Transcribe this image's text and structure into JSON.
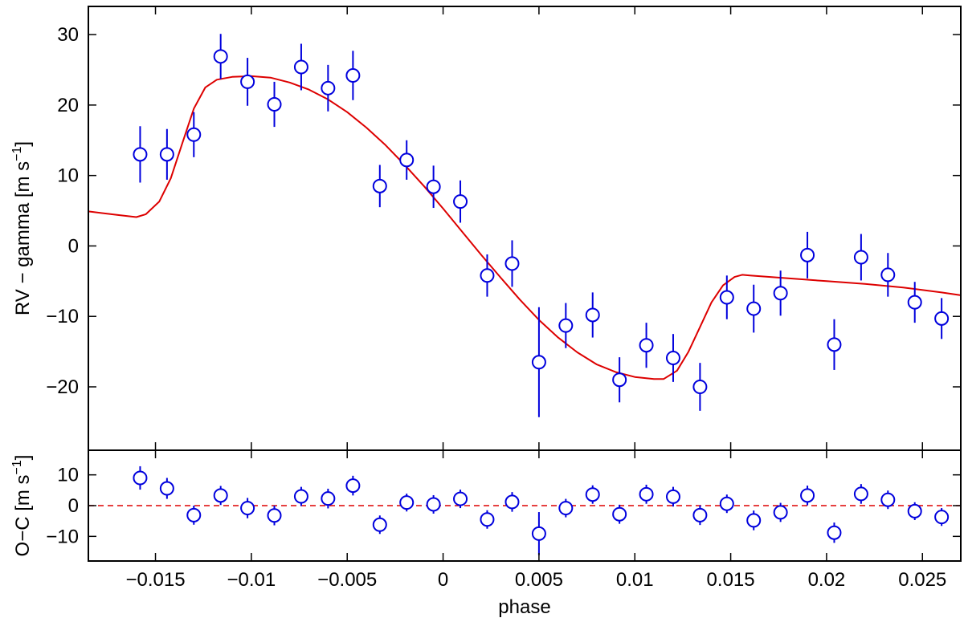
{
  "chart_data": [
    {
      "type": "scatter",
      "panel": "main",
      "title": "",
      "xlabel": "",
      "ylabel_parts": [
        "RV − gamma [m s",
        "−1",
        "]"
      ],
      "xlim": [
        -0.0185,
        0.027
      ],
      "ylim": [
        -29,
        34
      ],
      "yticks": [
        -20,
        -10,
        0,
        10,
        20,
        30
      ],
      "ytick_labels": [
        "−20",
        "−10",
        "0",
        "10",
        "20",
        "30"
      ],
      "grid": false,
      "colors": {
        "points": "#0000dd",
        "model": "#dd0000",
        "axes": "#000000"
      },
      "observations": {
        "x": [
          -0.0158,
          -0.0144,
          -0.013,
          -0.0116,
          -0.0102,
          -0.0088,
          -0.0074,
          -0.006,
          -0.0047,
          -0.0033,
          -0.0019,
          -0.0005,
          0.0009,
          0.0023,
          0.0036,
          0.005,
          0.0064,
          0.0078,
          0.0092,
          0.0106,
          0.012,
          0.0134,
          0.0148,
          0.0162,
          0.0176,
          0.019,
          0.0204,
          0.0218,
          0.0232,
          0.0246,
          0.026
        ],
        "y": [
          13.0,
          13.0,
          15.8,
          26.9,
          23.3,
          20.1,
          25.4,
          22.4,
          24.2,
          8.5,
          12.2,
          8.4,
          6.3,
          -4.2,
          -2.5,
          -16.5,
          -11.3,
          -9.8,
          -19.0,
          -14.1,
          -15.9,
          -20.0,
          -7.3,
          -8.9,
          -6.7,
          -1.3,
          -14.0,
          -1.6,
          -4.1,
          -8.0,
          -10.3
        ],
        "yerr": [
          4.0,
          3.6,
          3.2,
          3.2,
          3.4,
          3.2,
          3.3,
          3.3,
          3.5,
          3.0,
          2.8,
          3.0,
          3.0,
          3.0,
          3.3,
          7.8,
          3.2,
          3.2,
          3.2,
          3.2,
          3.4,
          3.4,
          3.1,
          3.4,
          3.2,
          3.3,
          3.6,
          3.3,
          3.1,
          2.9,
          2.9
        ]
      },
      "model": {
        "x": [
          -0.0185,
          -0.017,
          -0.016,
          -0.0155,
          -0.0148,
          -0.0142,
          -0.0136,
          -0.013,
          -0.0124,
          -0.0118,
          -0.011,
          -0.01,
          -0.009,
          -0.008,
          -0.007,
          -0.006,
          -0.005,
          -0.004,
          -0.003,
          -0.002,
          -0.001,
          0,
          0.001,
          0.002,
          0.003,
          0.004,
          0.005,
          0.006,
          0.007,
          0.008,
          0.009,
          0.01,
          0.011,
          0.0115,
          0.0122,
          0.0128,
          0.0134,
          0.014,
          0.0146,
          0.0152,
          0.0156,
          0.016,
          0.018,
          0.02,
          0.022,
          0.024,
          0.026,
          0.027
        ],
        "y": [
          4.9,
          4.4,
          4.1,
          4.5,
          6.3,
          9.6,
          14.6,
          19.5,
          22.5,
          23.6,
          24.0,
          24.1,
          23.9,
          23.2,
          22.2,
          20.8,
          19.0,
          16.8,
          14.3,
          11.5,
          8.5,
          5.3,
          2.0,
          -1.3,
          -4.5,
          -7.6,
          -10.5,
          -13.0,
          -15.1,
          -16.8,
          -17.9,
          -18.6,
          -18.9,
          -18.9,
          -17.7,
          -15.0,
          -11.5,
          -8.0,
          -5.6,
          -4.4,
          -4.1,
          -4.2,
          -4.6,
          -5.0,
          -5.4,
          -5.9,
          -6.6,
          -7.0
        ]
      }
    },
    {
      "type": "scatter",
      "panel": "residuals",
      "title": "",
      "xlabel": "phase",
      "ylabel_parts": [
        "O−C [m s",
        "−1",
        "]"
      ],
      "xlim": [
        -0.0185,
        0.027
      ],
      "ylim": [
        -18,
        18
      ],
      "xticks": [
        -0.015,
        -0.01,
        -0.005,
        0,
        0.005,
        0.01,
        0.015,
        0.02,
        0.025
      ],
      "xtick_labels": [
        "−0.015",
        "−0.01",
        "−0.005",
        "0",
        "0.005",
        "0.01",
        "0.015",
        "0.02",
        "0.025"
      ],
      "yticks": [
        -10,
        0,
        10
      ],
      "ytick_labels": [
        "−10",
        "0",
        "10"
      ],
      "zero_line": {
        "y": 0,
        "style": "dashed"
      },
      "residuals": {
        "x": [
          -0.0158,
          -0.0144,
          -0.013,
          -0.0116,
          -0.0102,
          -0.0088,
          -0.0074,
          -0.006,
          -0.0047,
          -0.0033,
          -0.0019,
          -0.0005,
          0.0009,
          0.0023,
          0.0036,
          0.005,
          0.0064,
          0.0078,
          0.0092,
          0.0106,
          0.012,
          0.0134,
          0.0148,
          0.0162,
          0.0176,
          0.019,
          0.0204,
          0.0218,
          0.0232,
          0.0246,
          0.026
        ],
        "y": [
          9.0,
          5.6,
          -3.1,
          3.3,
          -0.8,
          -3.2,
          3.0,
          2.3,
          6.5,
          -6.2,
          1.0,
          0.4,
          2.2,
          -4.5,
          1.2,
          -9.1,
          -0.8,
          3.6,
          -2.8,
          3.7,
          2.9,
          -3.1,
          0.6,
          -4.8,
          -2.2,
          3.3,
          -8.8,
          3.8,
          1.9,
          -1.8,
          -3.7
        ],
        "yerr": [
          3.8,
          3.4,
          3.1,
          3.1,
          3.3,
          3.2,
          3.1,
          3.2,
          3.2,
          3.0,
          2.9,
          3.0,
          3.0,
          3.0,
          3.2,
          7.0,
          3.0,
          3.0,
          3.1,
          3.1,
          3.2,
          3.2,
          3.0,
          3.2,
          3.1,
          3.2,
          3.3,
          3.2,
          3.0,
          2.9,
          2.9
        ]
      }
    }
  ]
}
